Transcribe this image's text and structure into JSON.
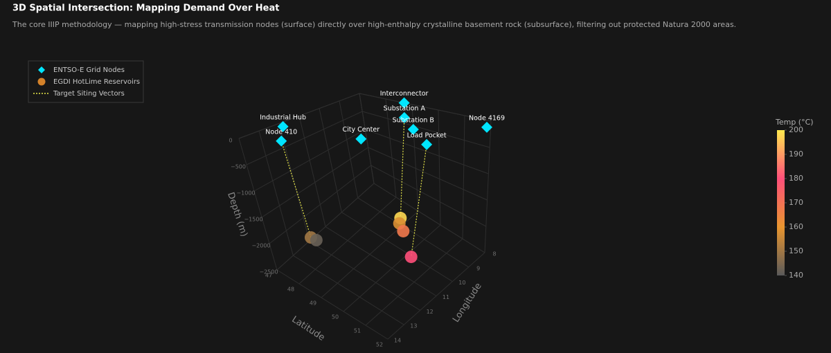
{
  "chart_data": {
    "type": "scatter3d",
    "title": "3D Spatial Intersection: Mapping Demand Over Heat",
    "subtitle": "The core IIIP methodology — mapping high-stress transmission nodes (surface) directly over high-enthalpy crystalline basement rock (subsurface), filtering out protected Natura 2000 areas.",
    "series": [
      {
        "name": "ENTSO-E Grid Nodes",
        "color": "#00e5ff",
        "marker": "diamond",
        "labels": [
          "Interconnector",
          "Substation A",
          "Substation B",
          "Industrial Hub",
          "Node 410",
          "City Center",
          "Load Pocket",
          "Node 4169"
        ],
        "lat": [
          48.7,
          49.66,
          50.65,
          47.3,
          48.2,
          50.0,
          51.96,
          52.3
        ],
        "lon": [
          8.0,
          9.25,
          10.1,
          12.2,
          13.46,
          11.85,
          11.15,
          8.6
        ],
        "depth": [
          0,
          0,
          0,
          0,
          0,
          0,
          0,
          0
        ]
      },
      {
        "name": "EGDI HotLime Reservoirs",
        "color": "#d4822a",
        "marker": "circle",
        "lat": [
          48.29,
          48.41,
          49.7,
          49.76,
          50.03,
          50.7
        ],
        "lon": [
          13.16,
          13.04,
          9.9,
          10.06,
          10.21,
          10.7
        ],
        "depth": [
          -1800,
          -1850,
          -1900,
          -1950,
          -2000,
          -2200
        ],
        "temp": [
          150,
          142,
          198,
          158,
          168,
          180
        ]
      },
      {
        "name": "Target Siting Vectors",
        "color": "#e8e84a",
        "line": "dotted",
        "lat": [
          48.2,
          48.29,
          null,
          49.66,
          49.7,
          null,
          51.96,
          50.7
        ],
        "lon": [
          13.46,
          13.16,
          null,
          9.25,
          9.9,
          null,
          11.15,
          10.7
        ],
        "depth": [
          0,
          -1800,
          null,
          0,
          -1900,
          null,
          0,
          -2200
        ]
      }
    ],
    "xlabel": "Latitude",
    "xlim": [
      47,
      52
    ],
    "xticks": [
      47,
      48,
      49,
      50,
      51,
      52
    ],
    "ylabel": "Longitude",
    "ylim": [
      8,
      14
    ],
    "yticks": [
      8,
      9,
      10,
      11,
      12,
      13,
      14
    ],
    "zlabel": "Depth (m)",
    "zlim": [
      -2500,
      0
    ],
    "zticks": [
      0,
      {
        "value": -500,
        "label": "−500"
      },
      {
        "value": -1000,
        "label": "−1000"
      },
      {
        "value": -1500,
        "label": "−1500"
      },
      {
        "value": -2000,
        "label": "−2000"
      },
      {
        "value": -2500,
        "label": "−2500"
      }
    ],
    "colorbar": {
      "title": "Temp (°C)",
      "lim": [
        140,
        200
      ],
      "ticks": [
        140,
        150,
        160,
        170,
        180,
        190,
        200
      ],
      "colorscale": [
        "#5a5a5a",
        "#e8952f",
        "#ff4f7a",
        "#ffe84d"
      ]
    },
    "grid": true
  }
}
